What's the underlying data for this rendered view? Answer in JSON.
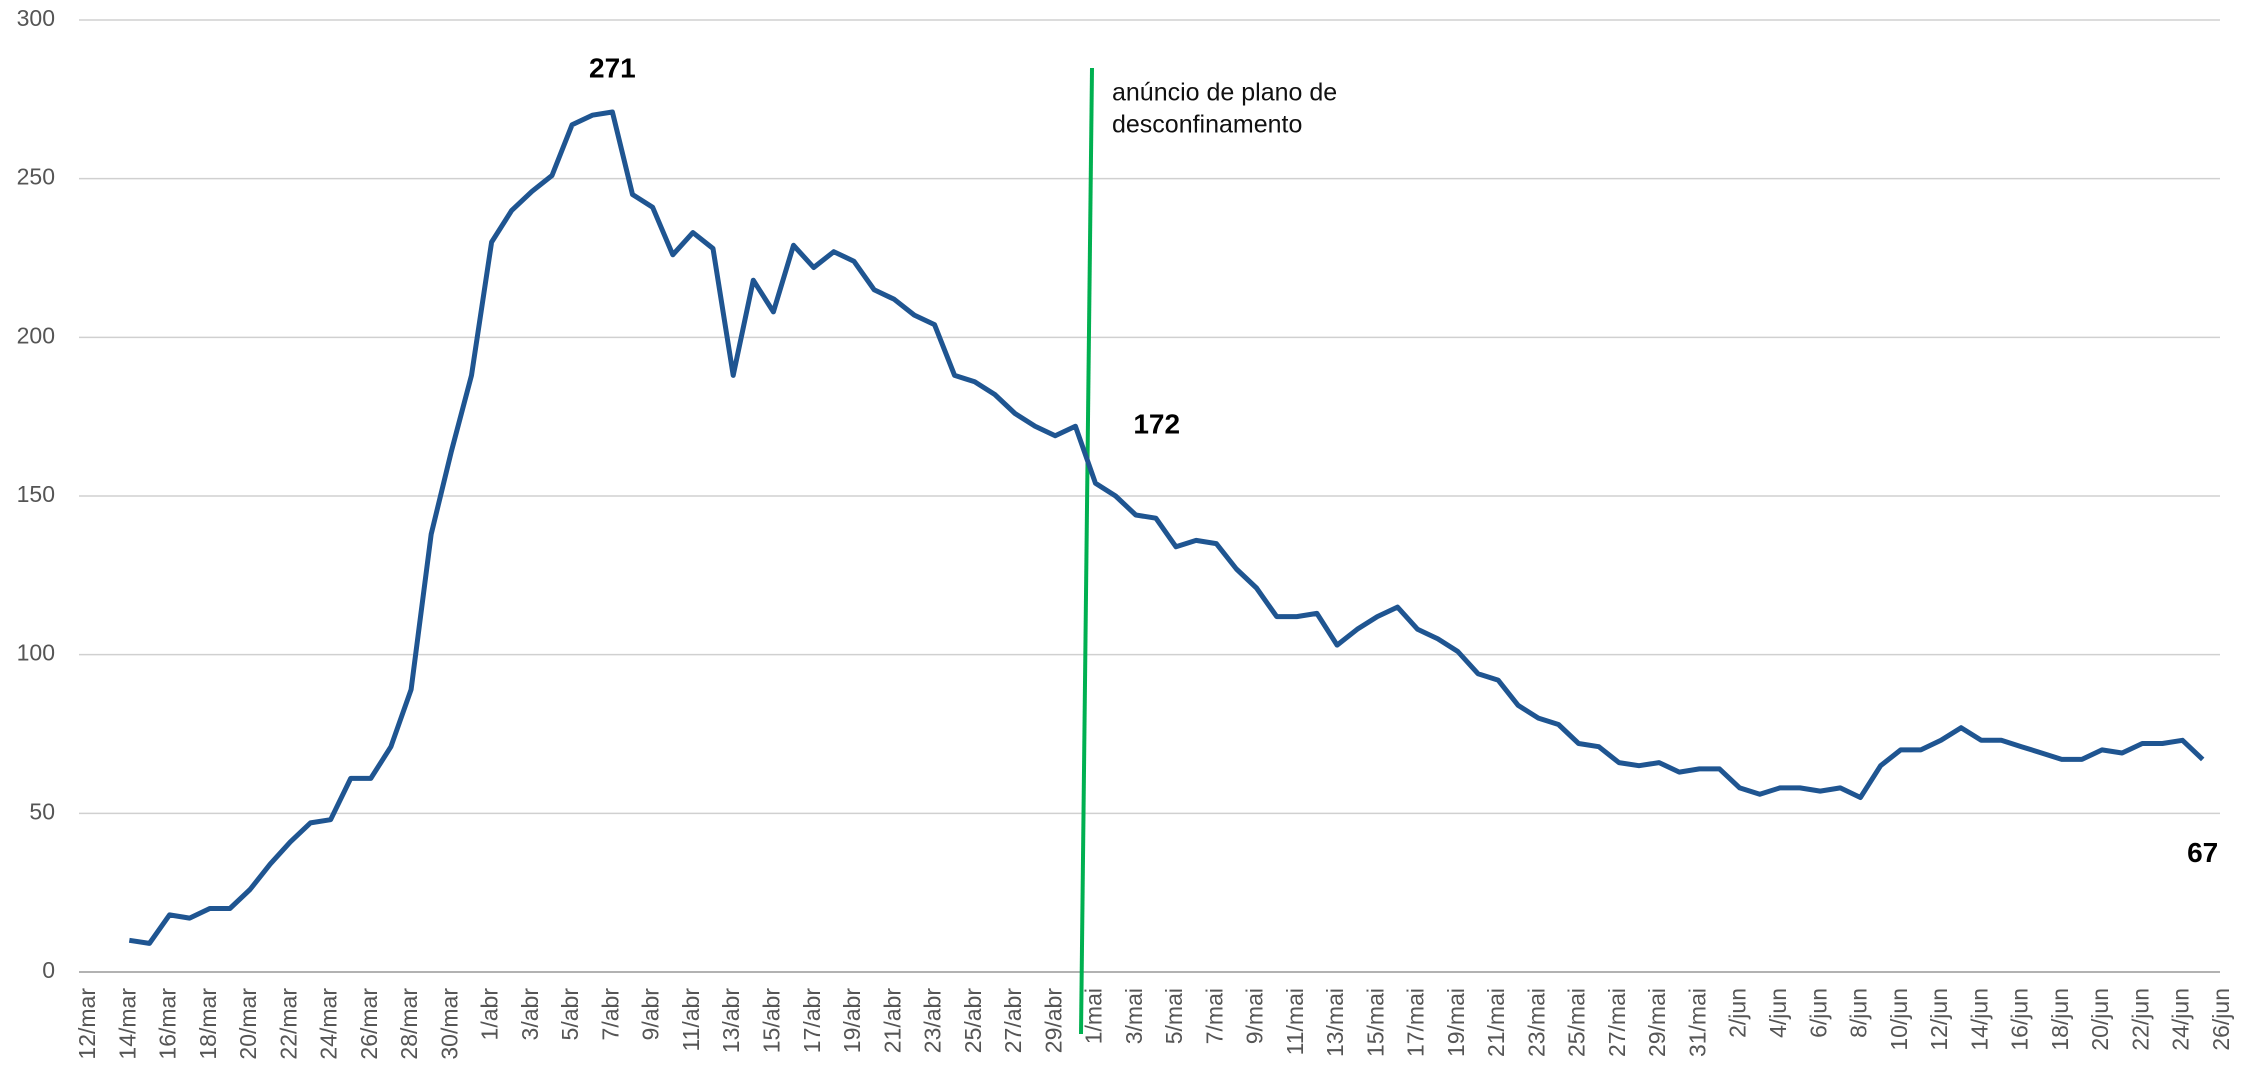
{
  "chart_data": {
    "type": "line",
    "categories": [
      "12/mar",
      null,
      "14/mar",
      null,
      "16/mar",
      null,
      "18/mar",
      null,
      "20/mar",
      null,
      "22/mar",
      null,
      "24/mar",
      null,
      "26/mar",
      null,
      "28/mar",
      null,
      "30/mar",
      null,
      "1/abr",
      null,
      "3/abr",
      null,
      "5/abr",
      null,
      "7/abr",
      null,
      "9/abr",
      null,
      "11/abr",
      null,
      "13/abr",
      null,
      "15/abr",
      null,
      "17/abr",
      null,
      "19/abr",
      null,
      "21/abr",
      null,
      "23/abr",
      null,
      "25/abr",
      null,
      "27/abr",
      null,
      "29/abr",
      null,
      "1/mai",
      null,
      "3/mai",
      null,
      "5/mai",
      null,
      "7/mai",
      null,
      "9/mai",
      null,
      "11/mai",
      null,
      "13/mai",
      null,
      "15/mai",
      null,
      "17/mai",
      null,
      "19/mai",
      null,
      "21/mai",
      null,
      "23/mai",
      null,
      "25/mai",
      null,
      "27/mai",
      null,
      "29/mai",
      null,
      "31/mai",
      null,
      "2/jun",
      null,
      "4/jun",
      null,
      "6/jun",
      null,
      "8/jun",
      null,
      "10/jun",
      null,
      "12/jun",
      null,
      "14/jun",
      null,
      "16/jun",
      null,
      "18/jun",
      null,
      "20/jun",
      null,
      "22/jun",
      null,
      "24/jun",
      null,
      "26/jun"
    ],
    "series": [
      {
        "color": "#1f5591",
        "values": [
          null,
          null,
          10,
          9,
          18,
          17,
          20,
          20,
          26,
          34,
          41,
          47,
          48,
          61,
          61,
          71,
          89,
          138,
          164,
          188,
          230,
          240,
          246,
          251,
          267,
          270,
          271,
          245,
          241,
          226,
          233,
          228,
          188,
          218,
          208,
          229,
          222,
          227,
          224,
          215,
          212,
          207,
          204,
          188,
          186,
          182,
          176,
          172,
          169,
          172,
          154,
          150,
          144,
          143,
          134,
          136,
          135,
          127,
          121,
          112,
          112,
          113,
          103,
          108,
          112,
          115,
          108,
          105,
          101,
          94,
          92,
          84,
          80,
          78,
          72,
          71,
          66,
          65,
          66,
          63,
          64,
          64,
          58,
          56,
          58,
          58,
          57,
          58,
          55,
          65,
          70,
          70,
          73,
          77,
          73,
          73,
          71,
          69,
          67,
          67,
          70,
          69,
          72,
          72,
          73,
          67,
          null
        ]
      }
    ],
    "ylim": [
      0,
      300
    ],
    "yticks": [
      0,
      50,
      100,
      150,
      200,
      250,
      300
    ],
    "grid": true,
    "annotation": {
      "lines": [
        "anúncio de plano de",
        "desconfinamento"
      ],
      "color": "#00b050"
    }
  }
}
